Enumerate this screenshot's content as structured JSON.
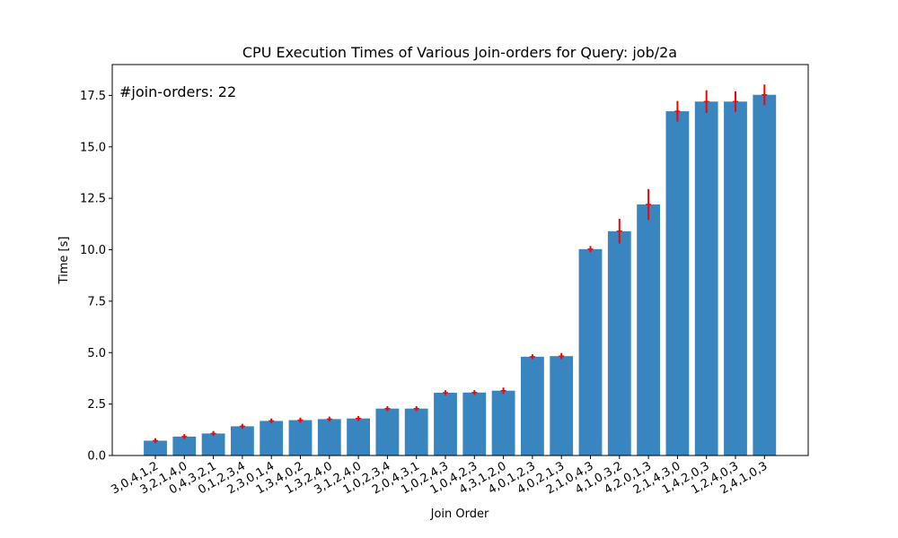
{
  "chart_data": {
    "type": "bar",
    "title": "CPU Execution Times of Various Join-orders for Query: job/2a",
    "xlabel": "Join Order",
    "ylabel": "Time [s]",
    "annotation": "#join-orders: 22",
    "ylim": [
      0,
      19
    ],
    "yticks": [
      "0.0",
      "2.5",
      "5.0",
      "7.5",
      "10.0",
      "12.5",
      "15.0",
      "17.5"
    ],
    "grid": false,
    "bar_color": "#3885bf",
    "error_color": "#ff0000",
    "categories": [
      "3,0,4,1,2",
      "3,2,1,4,0",
      "0,4,3,2,1",
      "0,1,2,3,4",
      "2,3,0,1,4",
      "1,3,4,0,2",
      "1,3,2,4,0",
      "3,1,2,4,0",
      "1,0,2,3,4",
      "2,0,4,3,1",
      "1,0,2,4,3",
      "1,0,4,2,3",
      "4,3,1,2,0",
      "4,0,1,2,3",
      "4,0,2,1,3",
      "2,1,0,4,3",
      "4,1,0,3,2",
      "4,2,0,1,3",
      "2,1,4,3,0",
      "1,4,2,0,3",
      "1,2,4,0,3",
      "2,4,1,0,3"
    ],
    "values": [
      0.72,
      0.92,
      1.07,
      1.42,
      1.68,
      1.72,
      1.77,
      1.8,
      2.28,
      2.28,
      3.05,
      3.06,
      3.15,
      4.8,
      4.83,
      10.03,
      10.9,
      12.2,
      16.73,
      17.2,
      17.2,
      17.53
    ],
    "errors": [
      0.12,
      0.12,
      0.12,
      0.12,
      0.12,
      0.12,
      0.12,
      0.12,
      0.12,
      0.12,
      0.12,
      0.12,
      0.15,
      0.12,
      0.15,
      0.15,
      0.6,
      0.75,
      0.5,
      0.55,
      0.5,
      0.5
    ]
  }
}
